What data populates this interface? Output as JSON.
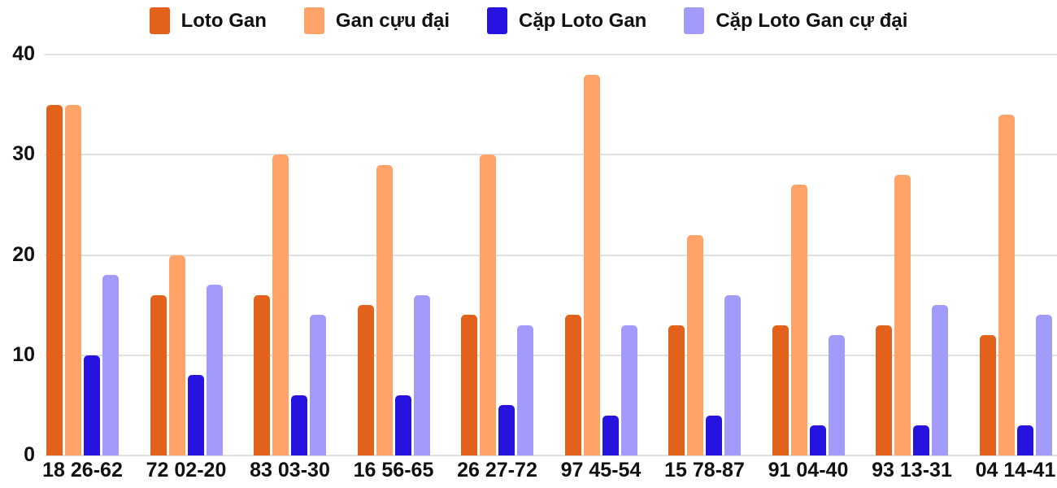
{
  "chart_data": {
    "type": "bar",
    "title": "",
    "categories": [
      "18 26-62",
      "72 02-20",
      "83 03-30",
      "16 56-65",
      "26 27-72",
      "97 45-54",
      "15 78-87",
      "91 04-40",
      "93 13-31",
      "04 14-41"
    ],
    "series": [
      {
        "name": "Loto Gan",
        "color": "#E2621C",
        "values": [
          35,
          16,
          16,
          15,
          14,
          14,
          13,
          13,
          13,
          12
        ]
      },
      {
        "name": "Gan cựu đại",
        "color": "#FFA368",
        "values": [
          35,
          20,
          30,
          29,
          30,
          38,
          22,
          27,
          28,
          34
        ]
      },
      {
        "name": "Cặp Loto Gan",
        "color": "#2613E0",
        "values": [
          10,
          8,
          6,
          6,
          5,
          4,
          4,
          3,
          3,
          3
        ]
      },
      {
        "name": "Cặp Loto Gan cự đại",
        "color": "#A29BFA",
        "values": [
          18,
          17,
          14,
          16,
          13,
          13,
          16,
          12,
          15,
          14
        ]
      }
    ],
    "xlabel": "",
    "ylabel": "",
    "ylim": [
      0,
      40
    ],
    "yticks": [
      40,
      30,
      20,
      10,
      0
    ],
    "grid": true,
    "gridline_color": "#E0E0E0",
    "legend_position": "top",
    "background": "#FFFFFF",
    "text_color": "#111111"
  }
}
